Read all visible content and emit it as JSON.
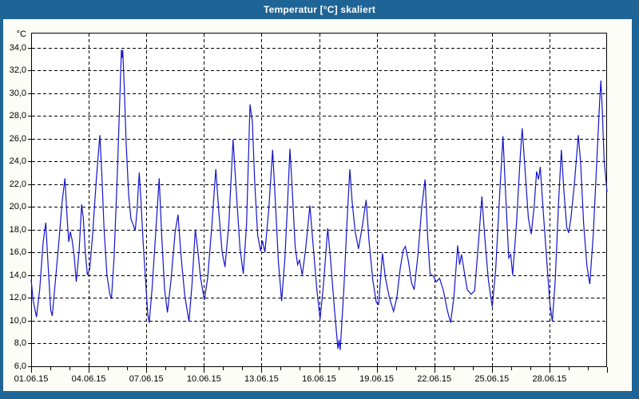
{
  "window": {
    "title": "Temperatur [°C] skaliert"
  },
  "colors": {
    "frame": "#1f6496",
    "title_text": "#ffffff",
    "panel": "#fcfdf6",
    "plot_background": "#ffffff",
    "grid": "#000000",
    "axis": "#000000",
    "line": "#1414cc"
  },
  "chart_data": {
    "type": "line",
    "title": "Temperatur [°C] skaliert",
    "y_unit_label": "°C",
    "xlabel": "",
    "ylabel": "°C",
    "grid": "dashed",
    "legend": "none",
    "ylim": [
      5.9,
      35.3
    ],
    "x_days": [
      0,
      30
    ],
    "x_major_step_days": 3,
    "y_ticks": [
      {
        "value": 34,
        "label": "34,0"
      },
      {
        "value": 32,
        "label": "32,0"
      },
      {
        "value": 30,
        "label": "30,0"
      },
      {
        "value": 28,
        "label": "28,0"
      },
      {
        "value": 26,
        "label": "26,0"
      },
      {
        "value": 24,
        "label": "24,0"
      },
      {
        "value": 22,
        "label": "22,0"
      },
      {
        "value": 20,
        "label": "20,0"
      },
      {
        "value": 18,
        "label": "18,0"
      },
      {
        "value": 16,
        "label": "16,0"
      },
      {
        "value": 14,
        "label": "14,0"
      },
      {
        "value": 12,
        "label": "12,0"
      },
      {
        "value": 10,
        "label": "10,0"
      },
      {
        "value": 8,
        "label": "8,0"
      },
      {
        "value": 6,
        "label": "6,0"
      }
    ],
    "x_ticks": [
      {
        "day": 0,
        "label": "01.06.15"
      },
      {
        "day": 3,
        "label": "04.06.15"
      },
      {
        "day": 6,
        "label": "07.06.15"
      },
      {
        "day": 9,
        "label": "10.06.15"
      },
      {
        "day": 12,
        "label": "13.06.15"
      },
      {
        "day": 15,
        "label": "16.06.15"
      },
      {
        "day": 18,
        "label": "19.06.15"
      },
      {
        "day": 21,
        "label": "22.06.15"
      },
      {
        "day": 24,
        "label": "25.06.15"
      },
      {
        "day": 27,
        "label": "28.06.15"
      }
    ],
    "series": [
      {
        "name": "Temperatur [°C] skaliert",
        "color": "#1414cc",
        "points": [
          [
            0.0,
            13.6
          ],
          [
            0.1,
            11.8
          ],
          [
            0.28,
            10.3
          ],
          [
            0.45,
            12.8
          ],
          [
            0.62,
            16.8
          ],
          [
            0.76,
            18.6
          ],
          [
            0.88,
            15.0
          ],
          [
            1.02,
            10.9
          ],
          [
            1.1,
            10.4
          ],
          [
            1.25,
            13.2
          ],
          [
            1.45,
            17.0
          ],
          [
            1.62,
            20.5
          ],
          [
            1.76,
            22.5
          ],
          [
            1.88,
            18.8
          ],
          [
            1.96,
            16.9
          ],
          [
            2.04,
            17.8
          ],
          [
            2.13,
            17.1
          ],
          [
            2.24,
            15.7
          ],
          [
            2.35,
            13.4
          ],
          [
            2.5,
            16.2
          ],
          [
            2.63,
            20.2
          ],
          [
            2.72,
            18.9
          ],
          [
            2.82,
            16.0
          ],
          [
            2.93,
            14.0
          ],
          [
            3.05,
            14.5
          ],
          [
            3.2,
            17.5
          ],
          [
            3.4,
            22.5
          ],
          [
            3.58,
            26.3
          ],
          [
            3.68,
            23.0
          ],
          [
            3.8,
            18.0
          ],
          [
            3.95,
            14.0
          ],
          [
            4.1,
            12.3
          ],
          [
            4.18,
            11.9
          ],
          [
            4.32,
            15.5
          ],
          [
            4.5,
            23.5
          ],
          [
            4.62,
            29.5
          ],
          [
            4.7,
            33.8
          ],
          [
            4.74,
            33.1
          ],
          [
            4.77,
            33.8
          ],
          [
            4.85,
            30.5
          ],
          [
            4.95,
            25.5
          ],
          [
            5.08,
            21.0
          ],
          [
            5.2,
            18.9
          ],
          [
            5.32,
            18.4
          ],
          [
            5.42,
            17.9
          ],
          [
            5.52,
            19.8
          ],
          [
            5.63,
            23.0
          ],
          [
            5.72,
            20.5
          ],
          [
            5.83,
            17.0
          ],
          [
            5.95,
            13.8
          ],
          [
            6.08,
            10.5
          ],
          [
            6.15,
            9.8
          ],
          [
            6.3,
            12.8
          ],
          [
            6.5,
            18.0
          ],
          [
            6.67,
            22.5
          ],
          [
            6.8,
            17.5
          ],
          [
            6.95,
            12.8
          ],
          [
            7.1,
            10.7
          ],
          [
            7.28,
            13.5
          ],
          [
            7.5,
            17.8
          ],
          [
            7.65,
            19.3
          ],
          [
            7.8,
            15.8
          ],
          [
            8.0,
            12.2
          ],
          [
            8.22,
            9.9
          ],
          [
            8.38,
            13.2
          ],
          [
            8.55,
            18.0
          ],
          [
            8.68,
            16.2
          ],
          [
            8.82,
            13.8
          ],
          [
            9.02,
            11.8
          ],
          [
            9.2,
            13.8
          ],
          [
            9.42,
            18.5
          ],
          [
            9.62,
            23.3
          ],
          [
            9.78,
            19.5
          ],
          [
            9.95,
            16.0
          ],
          [
            10.1,
            14.7
          ],
          [
            10.3,
            18.5
          ],
          [
            10.52,
            25.9
          ],
          [
            10.68,
            21.5
          ],
          [
            10.88,
            16.3
          ],
          [
            11.05,
            14.1
          ],
          [
            11.22,
            18.5
          ],
          [
            11.4,
            29.0
          ],
          [
            11.52,
            27.5
          ],
          [
            11.65,
            22.0
          ],
          [
            11.8,
            17.5
          ],
          [
            11.95,
            16.1
          ],
          [
            12.05,
            17.0
          ],
          [
            12.18,
            16.0
          ],
          [
            12.38,
            19.8
          ],
          [
            12.58,
            25.0
          ],
          [
            12.72,
            20.5
          ],
          [
            12.88,
            15.2
          ],
          [
            13.05,
            11.7
          ],
          [
            13.22,
            15.5
          ],
          [
            13.35,
            20.0
          ],
          [
            13.48,
            25.1
          ],
          [
            13.6,
            21.5
          ],
          [
            13.75,
            16.5
          ],
          [
            13.88,
            14.9
          ],
          [
            13.98,
            15.3
          ],
          [
            14.12,
            14.0
          ],
          [
            14.3,
            16.3
          ],
          [
            14.52,
            20.1
          ],
          [
            14.68,
            16.8
          ],
          [
            14.88,
            12.8
          ],
          [
            15.05,
            10.1
          ],
          [
            15.22,
            13.0
          ],
          [
            15.45,
            18.1
          ],
          [
            15.6,
            15.3
          ],
          [
            15.8,
            11.0
          ],
          [
            15.98,
            7.5
          ],
          [
            16.04,
            8.3
          ],
          [
            16.1,
            7.4
          ],
          [
            16.28,
            12.5
          ],
          [
            16.45,
            18.5
          ],
          [
            16.6,
            23.3
          ],
          [
            16.72,
            20.5
          ],
          [
            16.88,
            17.8
          ],
          [
            17.05,
            16.3
          ],
          [
            17.25,
            18.3
          ],
          [
            17.45,
            20.6
          ],
          [
            17.6,
            17.0
          ],
          [
            17.8,
            13.5
          ],
          [
            17.98,
            11.6
          ],
          [
            18.1,
            11.4
          ],
          [
            18.3,
            15.9
          ],
          [
            18.45,
            13.8
          ],
          [
            18.65,
            12.1
          ],
          [
            18.88,
            10.8
          ],
          [
            19.05,
            12.0
          ],
          [
            19.22,
            14.5
          ],
          [
            19.38,
            16.2
          ],
          [
            19.5,
            16.5
          ],
          [
            19.65,
            15.2
          ],
          [
            19.82,
            13.3
          ],
          [
            19.95,
            12.7
          ],
          [
            20.15,
            15.8
          ],
          [
            20.35,
            20.0
          ],
          [
            20.52,
            22.4
          ],
          [
            20.65,
            17.5
          ],
          [
            20.78,
            14.1
          ],
          [
            20.95,
            13.9
          ],
          [
            21.1,
            13.4
          ],
          [
            21.28,
            13.7
          ],
          [
            21.48,
            12.6
          ],
          [
            21.68,
            10.9
          ],
          [
            21.85,
            9.8
          ],
          [
            22.02,
            12.0
          ],
          [
            22.22,
            16.6
          ],
          [
            22.32,
            14.9
          ],
          [
            22.42,
            15.8
          ],
          [
            22.55,
            14.4
          ],
          [
            22.72,
            12.7
          ],
          [
            22.92,
            12.3
          ],
          [
            23.1,
            12.6
          ],
          [
            23.3,
            16.8
          ],
          [
            23.48,
            20.9
          ],
          [
            23.62,
            17.5
          ],
          [
            23.82,
            13.5
          ],
          [
            24.02,
            11.2
          ],
          [
            24.2,
            14.5
          ],
          [
            24.42,
            21.5
          ],
          [
            24.58,
            26.2
          ],
          [
            24.72,
            21.0
          ],
          [
            24.88,
            15.5
          ],
          [
            24.98,
            15.8
          ],
          [
            25.08,
            14.0
          ],
          [
            25.28,
            18.5
          ],
          [
            25.48,
            24.5
          ],
          [
            25.58,
            26.9
          ],
          [
            25.72,
            23.5
          ],
          [
            25.9,
            19.0
          ],
          [
            26.05,
            17.6
          ],
          [
            26.2,
            20.0
          ],
          [
            26.33,
            23.1
          ],
          [
            26.43,
            22.4
          ],
          [
            26.52,
            23.5
          ],
          [
            26.68,
            19.5
          ],
          [
            26.85,
            15.5
          ],
          [
            27.02,
            11.5
          ],
          [
            27.15,
            9.9
          ],
          [
            27.3,
            13.5
          ],
          [
            27.48,
            20.5
          ],
          [
            27.62,
            25.0
          ],
          [
            27.75,
            21.5
          ],
          [
            27.9,
            18.2
          ],
          [
            28.0,
            17.7
          ],
          [
            28.12,
            19.0
          ],
          [
            28.3,
            22.0
          ],
          [
            28.5,
            26.3
          ],
          [
            28.62,
            24.0
          ],
          [
            28.78,
            18.5
          ],
          [
            28.95,
            14.8
          ],
          [
            29.1,
            13.2
          ],
          [
            29.28,
            17.5
          ],
          [
            29.48,
            24.5
          ],
          [
            29.62,
            29.5
          ],
          [
            29.68,
            31.1
          ],
          [
            29.75,
            28.5
          ],
          [
            29.85,
            24.0
          ],
          [
            30.0,
            21.3
          ]
        ]
      }
    ]
  }
}
